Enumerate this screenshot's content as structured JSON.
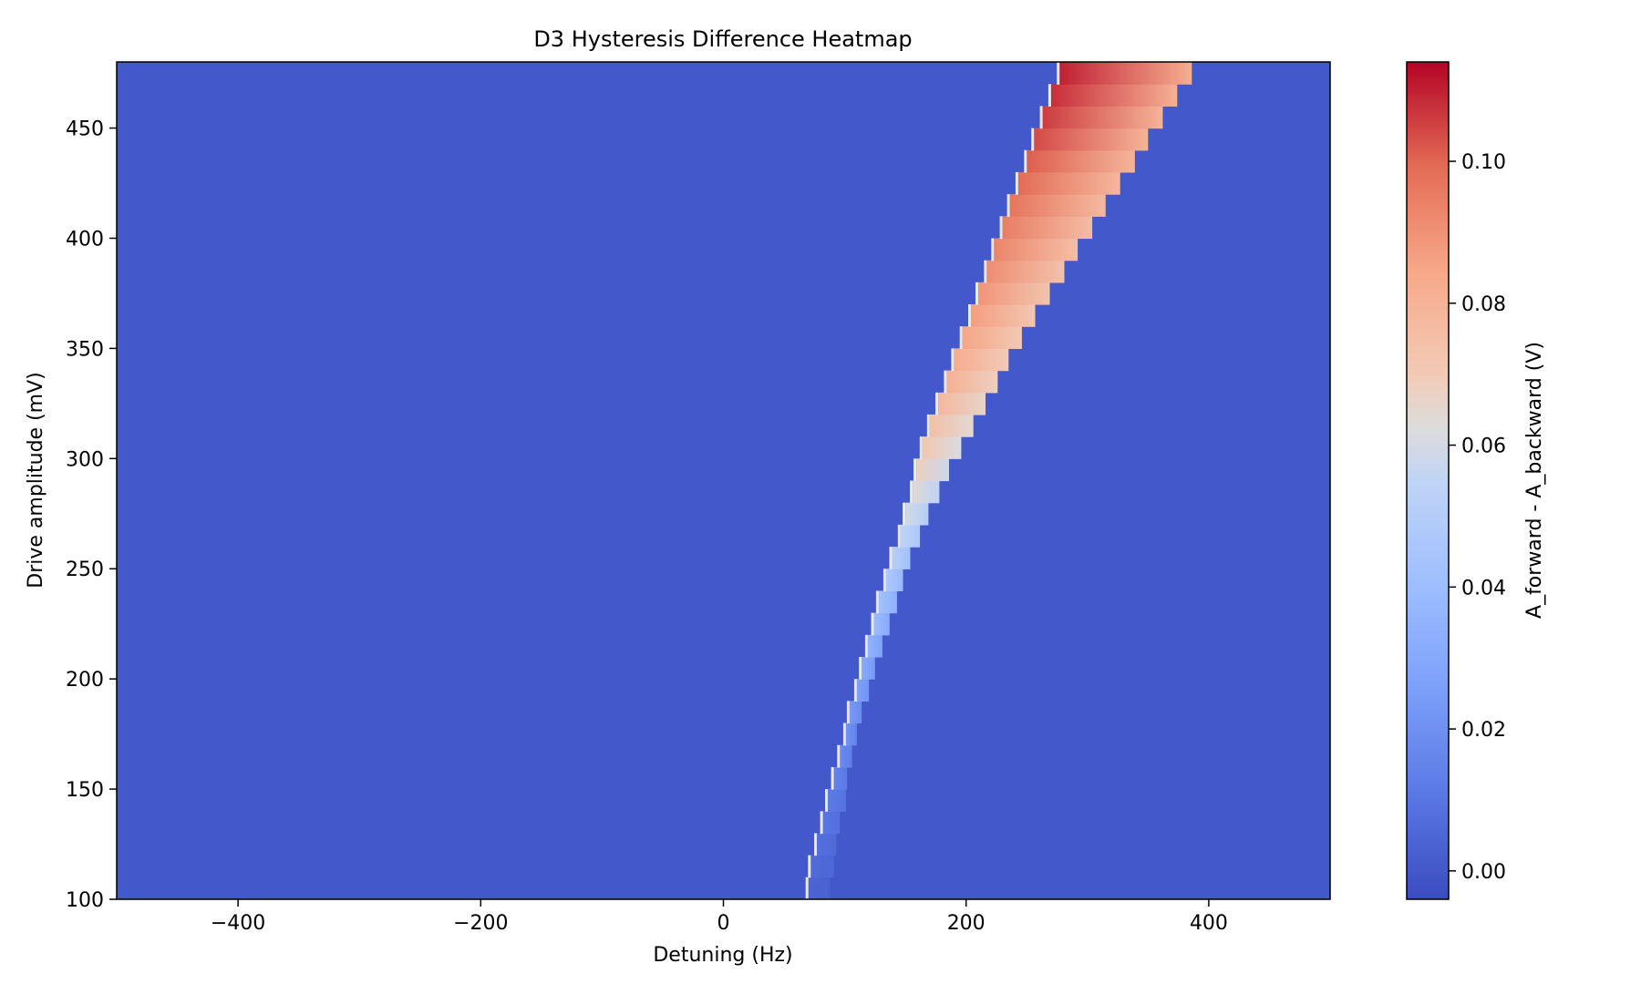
{
  "chart_data": {
    "type": "heatmap",
    "title": "D3 Hysteresis Difference Heatmap",
    "xlabel": "Detuning (Hz)",
    "ylabel": "Drive amplitude (mV)",
    "colorbar_label": "A_forward - A_backward (V)",
    "colormap": "coolwarm",
    "xlim": [
      -500,
      500
    ],
    "ylim": [
      100,
      480
    ],
    "clim": [
      -0.004,
      0.114
    ],
    "xticks": [
      -400,
      -200,
      0,
      200,
      400
    ],
    "xtick_labels": [
      "−400",
      "−200",
      "0",
      "200",
      "400"
    ],
    "yticks": [
      100,
      150,
      200,
      250,
      300,
      350,
      400,
      450
    ],
    "ytick_labels": [
      "100",
      "150",
      "200",
      "250",
      "300",
      "350",
      "400",
      "450"
    ],
    "cticks": [
      0.0,
      0.02,
      0.04,
      0.06,
      0.08,
      0.1
    ],
    "ctick_labels": [
      "0.00",
      "0.02",
      "0.04",
      "0.06",
      "0.08",
      "0.10"
    ],
    "background_value": 0.0,
    "hysteresis_band": {
      "drive_mV": [
        110,
        120,
        130,
        140,
        150,
        160,
        170,
        180,
        190,
        200,
        210,
        220,
        230,
        240,
        250,
        260,
        270,
        280,
        290,
        300,
        310,
        320,
        330,
        340,
        350,
        360,
        370,
        380,
        390,
        400,
        410,
        420,
        430,
        440,
        450,
        460,
        470,
        480
      ],
      "start_Hz": [
        70,
        72,
        77,
        82,
        86,
        91,
        96,
        101,
        104,
        110,
        114,
        119,
        124,
        128,
        134,
        139,
        146,
        150,
        156,
        159,
        164,
        170,
        177,
        184,
        190,
        197,
        204,
        210,
        217,
        223,
        230,
        236,
        243,
        250,
        256,
        263,
        270,
        277
      ],
      "end_Hz": [
        88,
        91,
        93,
        96,
        101,
        102,
        106,
        110,
        114,
        120,
        125,
        131,
        137,
        143,
        148,
        154,
        162,
        169,
        178,
        186,
        196,
        206,
        216,
        226,
        235,
        246,
        257,
        269,
        281,
        292,
        304,
        315,
        327,
        339,
        350,
        362,
        374,
        386
      ],
      "peak_value_V": [
        0.004,
        0.006,
        0.008,
        0.01,
        0.012,
        0.015,
        0.018,
        0.021,
        0.024,
        0.027,
        0.031,
        0.035,
        0.039,
        0.043,
        0.047,
        0.051,
        0.055,
        0.06,
        0.064,
        0.068,
        0.072,
        0.075,
        0.078,
        0.081,
        0.083,
        0.085,
        0.087,
        0.089,
        0.091,
        0.093,
        0.095,
        0.097,
        0.099,
        0.101,
        0.104,
        0.106,
        0.108,
        0.11
      ],
      "trailing_value_V": [
        0.003,
        0.005,
        0.006,
        0.008,
        0.009,
        0.011,
        0.013,
        0.015,
        0.018,
        0.021,
        0.024,
        0.027,
        0.031,
        0.034,
        0.038,
        0.042,
        0.046,
        0.05,
        0.054,
        0.058,
        0.061,
        0.064,
        0.066,
        0.068,
        0.07,
        0.071,
        0.072,
        0.073,
        0.074,
        0.075,
        0.076,
        0.077,
        0.078,
        0.079,
        0.08,
        0.08,
        0.081,
        0.082
      ]
    }
  }
}
